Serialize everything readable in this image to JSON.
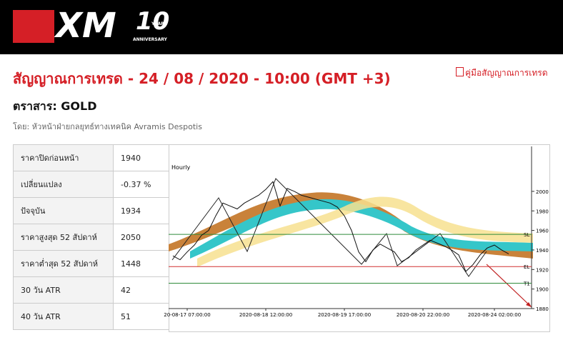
{
  "header": {
    "logo": "XM",
    "badge": "10",
    "badge_sub": "YEARS",
    "badge_caption": "ANNIVERSARY"
  },
  "page": {
    "title": "สัญญาณการเทรด - 24 / 08 / 2020 - 10:00 (GMT +3)",
    "guide_link": "คู่มือสัญญาณการเทรด",
    "instrument": "ตราสาร: GOLD",
    "author": "โดย: หัวหน้าฝ่ายกลยุทธ์ทางเทคนิค Avramis Despotis"
  },
  "table": {
    "rows": [
      [
        "ราคาปิดก่อนหน้า",
        "1940"
      ],
      [
        "เปลี่ยนแปลง",
        "-0.37 %"
      ],
      [
        "ปัจจุบัน",
        "1934"
      ],
      [
        "ราคาสูงสุด 52 สัปดาห์",
        "2050"
      ],
      [
        "ราคาต่ำสุด 52 สัปดาห์",
        "1448"
      ],
      [
        "30 วัน ATR",
        "42"
      ],
      [
        "40 วัน ATR",
        "51"
      ]
    ]
  },
  "chart_data": {
    "type": "line",
    "title": "Hourly",
    "categories": [
      null,
      null,
      "20-08-17 07:00:00",
      null,
      null,
      null,
      null,
      null,
      null,
      null,
      null,
      null,
      null,
      "2020-08-18 12:00:00",
      null,
      null,
      null,
      null,
      null,
      null,
      null,
      null,
      null,
      null,
      "2020-08-19 17:00:00",
      null,
      null,
      null,
      null,
      null,
      null,
      null,
      null,
      null,
      null,
      "2020-08-20 22:00:00",
      null,
      null,
      null,
      null,
      null,
      null,
      null,
      null,
      null,
      "2020-08-24 02:00:00",
      null,
      null
    ],
    "series": [
      {
        "name": "GOLD",
        "color": "#111111",
        "values": [
          1934,
          1930,
          1938,
          1945,
          1955,
          1960,
          1975,
          1988,
          1985,
          1982,
          1988,
          1992,
          1996,
          2002,
          2010,
          1985,
          2003,
          2000,
          1996,
          1994,
          1992,
          1990,
          1988,
          1984,
          1975,
          1960,
          1938,
          1928,
          1940,
          1946,
          1942,
          1938,
          1928,
          1932,
          1940,
          1945,
          1950,
          1947,
          1944,
          1940,
          1935,
          1918,
          1925,
          1935,
          1942,
          1945,
          1940,
          1936
        ]
      }
    ],
    "levels": [
      {
        "name": "SL",
        "value": 1956,
        "color": "#2e8b3a"
      },
      {
        "name": "EL",
        "value": 1923,
        "color": "#d03030"
      },
      {
        "name": "T1",
        "value": 1906,
        "color": "#2e8b3a"
      }
    ],
    "ylim": [
      1880,
      2046
    ],
    "yticks": [
      1880,
      1900,
      1920,
      1940,
      1960,
      1980,
      2000
    ]
  }
}
